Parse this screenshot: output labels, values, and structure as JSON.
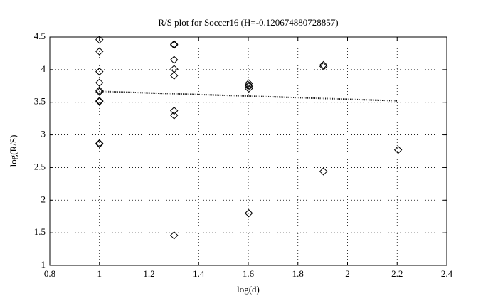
{
  "chart_data": {
    "type": "scatter",
    "title": "R/S plot for Soccer16 (H=-0.120674880728857)",
    "x_label": "log(d)",
    "y_label": "log(R/S)",
    "xlim": [
      0.8,
      2.4
    ],
    "ylim": [
      1,
      4.5
    ],
    "xticks": [
      0.8,
      1,
      1.2,
      1.4,
      1.6,
      1.8,
      2,
      2.2,
      2.4
    ],
    "yticks": [
      1,
      1.5,
      2,
      2.5,
      3,
      3.5,
      4,
      4.5
    ],
    "grid": true,
    "marker_color": "#000000",
    "fit_color": "#000000",
    "points": {
      "x": [
        1,
        1,
        1,
        1,
        1,
        1,
        1,
        1,
        1,
        1,
        1.301,
        1.301,
        1.301,
        1.301,
        1.301,
        1.301,
        1.301,
        1.301,
        1.602,
        1.602,
        1.602,
        1.602,
        1.602,
        1.903,
        1.903,
        1.903,
        2.204
      ],
      "y": [
        4.46,
        4.28,
        3.97,
        3.8,
        3.68,
        3.66,
        3.52,
        3.51,
        2.87,
        2.86,
        4.39,
        4.38,
        4.15,
        4.01,
        3.91,
        3.37,
        3.3,
        1.46,
        3.79,
        3.76,
        3.74,
        3.71,
        1.8,
        4.07,
        4.05,
        2.44,
        2.77
      ]
    },
    "fit": {
      "x": [
        1,
        2.204
      ],
      "y": [
        3.667,
        3.522
      ]
    }
  }
}
